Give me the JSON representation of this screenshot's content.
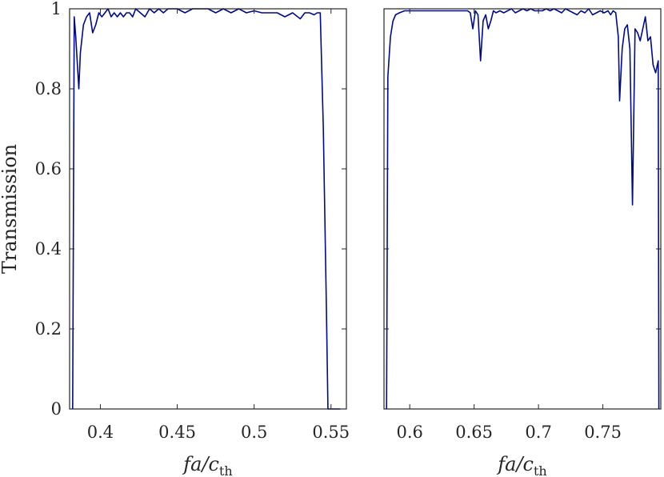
{
  "chart_data": [
    {
      "type": "line",
      "title": "",
      "xlabel_parts": {
        "main": "fa/c",
        "sub": "th"
      },
      "ylabel": "Transmission",
      "xlim": [
        0.38,
        0.56
      ],
      "ylim": [
        0,
        1
      ],
      "xticks": [
        0.4,
        0.45,
        0.5,
        0.55
      ],
      "xtick_labels": [
        "0.4",
        "0.45",
        "0.5",
        "0.55"
      ],
      "yticks": [
        0,
        0.2,
        0.4,
        0.6,
        0.8,
        1
      ],
      "ytick_labels": [
        "0",
        "0.2",
        "0.4",
        "0.6",
        "0.8",
        "1"
      ],
      "grid": false,
      "series": [
        {
          "color": "#000a8c",
          "x": [
            0.382,
            0.383,
            0.384,
            0.386,
            0.387,
            0.389,
            0.391,
            0.393,
            0.395,
            0.397,
            0.399,
            0.401,
            0.403,
            0.405,
            0.407,
            0.409,
            0.411,
            0.413,
            0.415,
            0.417,
            0.419,
            0.421,
            0.423,
            0.426,
            0.429,
            0.432,
            0.435,
            0.438,
            0.441,
            0.444,
            0.447,
            0.45,
            0.455,
            0.46,
            0.465,
            0.47,
            0.475,
            0.48,
            0.485,
            0.49,
            0.495,
            0.5,
            0.505,
            0.51,
            0.515,
            0.52,
            0.525,
            0.53,
            0.533,
            0.536,
            0.539,
            0.541,
            0.543,
            0.545,
            0.547,
            0.548,
            0.55,
            0.556
          ],
          "y": [
            0,
            0.98,
            0.93,
            0.8,
            0.89,
            0.96,
            0.98,
            0.99,
            0.94,
            0.96,
            0.99,
            0.98,
            0.99,
            1.0,
            0.98,
            0.99,
            0.98,
            0.99,
            0.98,
            0.99,
            0.99,
            0.98,
            1.0,
            0.99,
            0.98,
            1.0,
            0.99,
            1.0,
            0.99,
            1.0,
            1.0,
            1.0,
            0.99,
            1.0,
            1.0,
            1.0,
            0.99,
            1.0,
            0.99,
            1.0,
            0.99,
            0.995,
            0.99,
            0.99,
            0.99,
            0.98,
            0.99,
            0.975,
            0.99,
            0.99,
            0.985,
            0.99,
            0.99,
            0.7,
            0.25,
            0,
            0,
            0
          ]
        }
      ]
    },
    {
      "type": "line",
      "title": "",
      "xlabel_parts": {
        "main": "fa/c",
        "sub": "th"
      },
      "ylabel": "",
      "xlim": [
        0.58,
        0.795
      ],
      "ylim": [
        0,
        1
      ],
      "xticks": [
        0.6,
        0.65,
        0.7,
        0.75
      ],
      "xtick_labels": [
        "0.6",
        "0.65",
        "0.7",
        "0.75"
      ],
      "yticks": [
        0,
        0.2,
        0.4,
        0.6,
        0.8,
        1
      ],
      "ytick_labels": [],
      "grid": false,
      "series": [
        {
          "color": "#000a8c",
          "x": [
            0.582,
            0.583,
            0.585,
            0.587,
            0.589,
            0.592,
            0.596,
            0.6,
            0.61,
            0.62,
            0.63,
            0.64,
            0.645,
            0.647,
            0.649,
            0.651,
            0.653,
            0.655,
            0.657,
            0.659,
            0.661,
            0.663,
            0.665,
            0.667,
            0.67,
            0.673,
            0.676,
            0.679,
            0.682,
            0.685,
            0.688,
            0.691,
            0.694,
            0.697,
            0.7,
            0.703,
            0.706,
            0.709,
            0.712,
            0.715,
            0.718,
            0.721,
            0.724,
            0.727,
            0.73,
            0.733,
            0.736,
            0.739,
            0.742,
            0.745,
            0.748,
            0.751,
            0.754,
            0.756,
            0.758,
            0.76,
            0.762,
            0.763,
            0.765,
            0.767,
            0.769,
            0.771,
            0.773,
            0.775,
            0.777,
            0.779,
            0.781,
            0.783,
            0.785,
            0.787,
            0.789,
            0.791,
            0.793,
            0.7935
          ],
          "y": [
            0,
            0.83,
            0.93,
            0.97,
            0.985,
            0.99,
            0.995,
            0.995,
            0.995,
            0.995,
            0.995,
            0.995,
            0.995,
            0.99,
            0.95,
            0.995,
            0.985,
            0.87,
            0.97,
            0.985,
            0.95,
            0.97,
            0.995,
            0.99,
            0.995,
            0.99,
            0.995,
            1.0,
            0.99,
            0.995,
            1.0,
            0.995,
            1.0,
            0.995,
            0.995,
            0.995,
            1.0,
            0.995,
            1.0,
            0.995,
            0.99,
            1.0,
            0.995,
            0.99,
            0.985,
            0.995,
            0.99,
            1.0,
            0.985,
            0.99,
            0.995,
            0.99,
            0.995,
            0.985,
            0.995,
            0.99,
            0.93,
            0.77,
            0.9,
            0.95,
            0.96,
            0.9,
            0.51,
            0.95,
            0.94,
            0.92,
            0.95,
            0.98,
            0.92,
            0.93,
            0.86,
            0.84,
            0.87,
            0
          ]
        }
      ]
    }
  ]
}
